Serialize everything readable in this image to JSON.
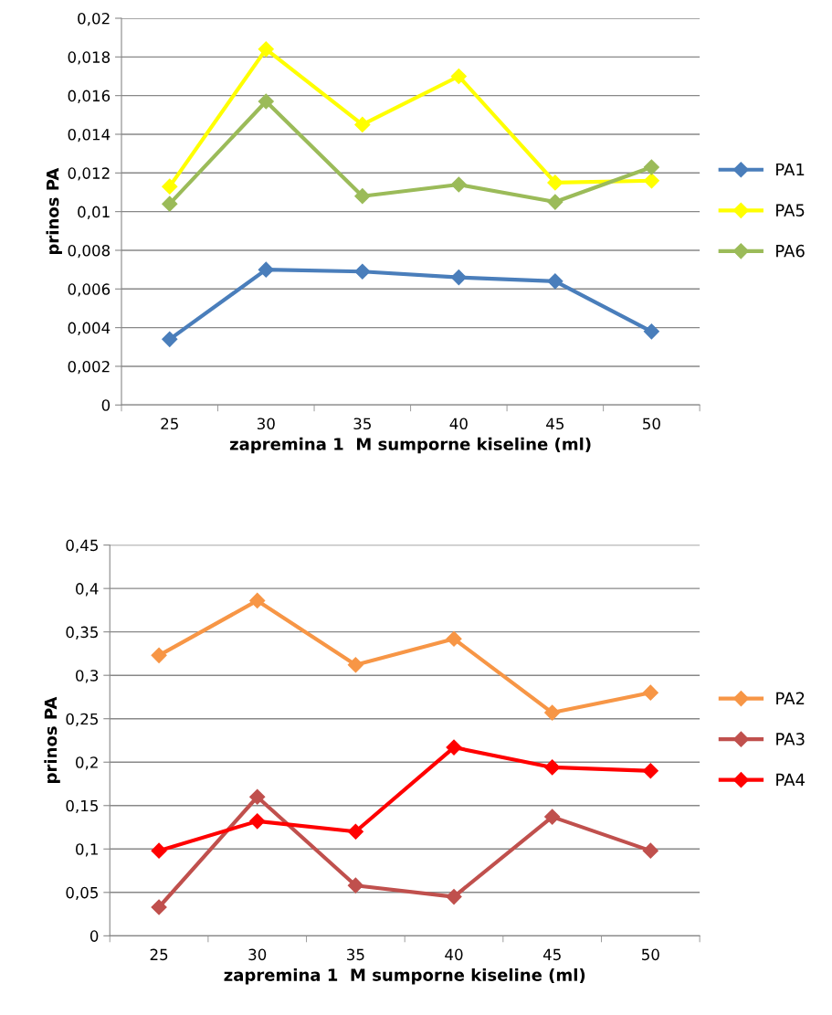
{
  "chart_data": [
    {
      "type": "line",
      "xlabel": "zapremina 1  M sumporne kiseline (ml)",
      "ylabel": "prinos PA",
      "categories": [
        "25",
        "30",
        "35",
        "40",
        "45",
        "50"
      ],
      "series": [
        {
          "name": "PA1",
          "color": "#4a7ebb",
          "values": [
            0.0034,
            0.007,
            0.0069,
            0.0066,
            0.0064,
            0.0038
          ]
        },
        {
          "name": "PA5",
          "color": "#ffff00",
          "values": [
            0.0113,
            0.0184,
            0.0145,
            0.017,
            0.0115,
            0.0116
          ]
        },
        {
          "name": "PA6",
          "color": "#9bbb59",
          "values": [
            0.0104,
            0.0157,
            0.0108,
            0.0114,
            0.0105,
            0.0123
          ]
        }
      ],
      "ylim": [
        0,
        0.02
      ],
      "yticks": [
        0,
        {
          "value": 0.002,
          "label": "0,002"
        },
        {
          "value": 0.004,
          "label": "0,004"
        },
        {
          "value": 0.006,
          "label": "0,006"
        },
        {
          "value": 0.008,
          "label": "0,008"
        },
        {
          "value": 0.01,
          "label": "0,01"
        },
        {
          "value": 0.012,
          "label": "0,012"
        },
        {
          "value": 0.014,
          "label": "0,014"
        },
        {
          "value": 0.016,
          "label": "0,016"
        },
        {
          "value": 0.018,
          "label": "0,018"
        },
        {
          "value": 0.02,
          "label": "0,02"
        }
      ],
      "grid": "y",
      "legend": "right",
      "marker": "diamond",
      "line_style": "solid"
    },
    {
      "type": "line",
      "xlabel": "zapremina 1  M sumporne kiseline (ml)",
      "ylabel": "prinos PA",
      "categories": [
        "25",
        "30",
        "35",
        "40",
        "45",
        "50"
      ],
      "series": [
        {
          "name": "PA2",
          "color": "#f79646",
          "values": [
            0.323,
            0.386,
            0.312,
            0.342,
            0.257,
            0.28
          ]
        },
        {
          "name": "PA3",
          "color": "#c0504d",
          "values": [
            0.033,
            0.16,
            0.058,
            0.045,
            0.137,
            0.098
          ]
        },
        {
          "name": "PA4",
          "color": "#ff0000",
          "values": [
            0.098,
            0.132,
            0.12,
            0.217,
            0.194,
            0.19
          ]
        }
      ],
      "ylim": [
        0,
        0.45
      ],
      "yticks": [
        0,
        {
          "value": 0.05,
          "label": "0,05"
        },
        {
          "value": 0.1,
          "label": "0,1"
        },
        {
          "value": 0.15,
          "label": "0,15"
        },
        {
          "value": 0.2,
          "label": "0,2"
        },
        {
          "value": 0.25,
          "label": "0,25"
        },
        {
          "value": 0.3,
          "label": "0,3"
        },
        {
          "value": 0.35,
          "label": "0,35"
        },
        {
          "value": 0.4,
          "label": "0,4"
        },
        {
          "value": 0.45,
          "label": "0,45"
        }
      ],
      "grid": "y",
      "legend": "right",
      "marker": "diamond",
      "line_style": "solid"
    }
  ]
}
